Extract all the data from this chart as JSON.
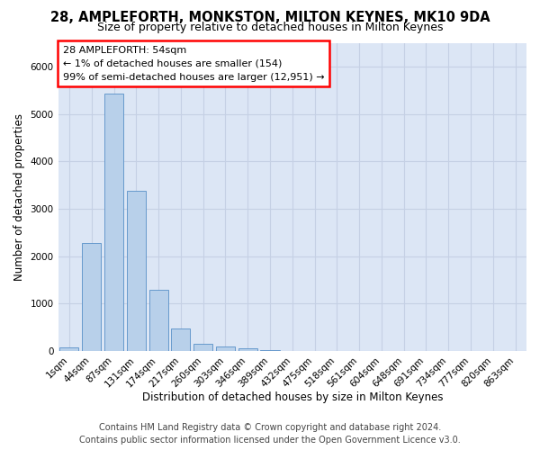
{
  "title": "28, AMPLEFORTH, MONKSTON, MILTON KEYNES, MK10 9DA",
  "subtitle": "Size of property relative to detached houses in Milton Keynes",
  "xlabel": "Distribution of detached houses by size in Milton Keynes",
  "ylabel": "Number of detached properties",
  "footer_line1": "Contains HM Land Registry data © Crown copyright and database right 2024.",
  "footer_line2": "Contains public sector information licensed under the Open Government Licence v3.0.",
  "annotation_line1": "28 AMPLEFORTH: 54sqm",
  "annotation_line2": "← 1% of detached houses are smaller (154)",
  "annotation_line3": "99% of semi-detached houses are larger (12,951) →",
  "categories": [
    "1sqm",
    "44sqm",
    "87sqm",
    "131sqm",
    "174sqm",
    "217sqm",
    "260sqm",
    "303sqm",
    "346sqm",
    "389sqm",
    "432sqm",
    "475sqm",
    "518sqm",
    "561sqm",
    "604sqm",
    "648sqm",
    "691sqm",
    "734sqm",
    "777sqm",
    "820sqm",
    "863sqm"
  ],
  "values": [
    75,
    2270,
    5430,
    3380,
    1300,
    480,
    160,
    90,
    55,
    25,
    0,
    0,
    0,
    0,
    0,
    0,
    0,
    0,
    0,
    0,
    0
  ],
  "bar_color": "#b8d0ea",
  "bar_edge_color": "#6699cc",
  "background_color": "#ffffff",
  "plot_bg_color": "#dce6f5",
  "grid_color": "#c5d0e4",
  "ylim_max": 6500,
  "title_fontsize": 10.5,
  "subtitle_fontsize": 9,
  "axis_label_fontsize": 8.5,
  "tick_fontsize": 7.5,
  "annot_fontsize": 8,
  "footer_fontsize": 7
}
